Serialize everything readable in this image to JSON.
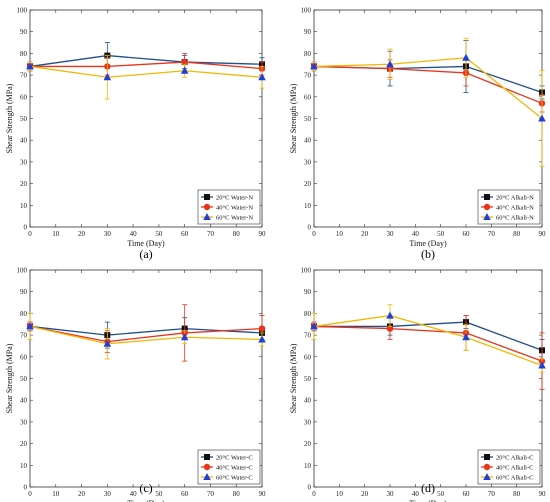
{
  "colors": {
    "20C": "#1f4e8c",
    "40C": "#e8341c",
    "60C": "#f2b705",
    "marker20": "#111111",
    "marker40": "#e8341c",
    "marker60": "#1f3fd6"
  },
  "chart_data": [
    {
      "type": "line",
      "caption": "(a)",
      "xlabel": "Time (Day)",
      "ylabel": "Shear Strength (MPa)",
      "xlim": [
        0,
        90
      ],
      "ylim": [
        0,
        100
      ],
      "xticks": [
        0,
        10,
        20,
        30,
        40,
        50,
        60,
        70,
        80,
        90
      ],
      "yticks": [
        0,
        10,
        20,
        30,
        40,
        50,
        60,
        70,
        80,
        90,
        100
      ],
      "legend_position": "bottom-right",
      "x": [
        0,
        30,
        60,
        90
      ],
      "series": [
        {
          "name": "20°C Water-N",
          "key": "20C",
          "marker": "square",
          "values": [
            74,
            79,
            76,
            75
          ],
          "errors": [
            2,
            6,
            3,
            3
          ]
        },
        {
          "name": "40°C Water-N",
          "key": "40C",
          "marker": "circle",
          "values": [
            74,
            74,
            76,
            73
          ],
          "errors": [
            2,
            4,
            4,
            3
          ]
        },
        {
          "name": "60°C Water-N",
          "key": "60C",
          "marker": "triangle",
          "values": [
            74,
            69,
            72,
            69
          ],
          "errors": [
            2,
            10,
            3,
            5
          ]
        }
      ]
    },
    {
      "type": "line",
      "caption": "(b)",
      "xlabel": "Time (Day)",
      "ylabel": "Shear Strength (MPa)",
      "xlim": [
        0,
        90
      ],
      "ylim": [
        0,
        100
      ],
      "xticks": [
        0,
        10,
        20,
        30,
        40,
        50,
        60,
        70,
        80,
        90
      ],
      "yticks": [
        0,
        10,
        20,
        30,
        40,
        50,
        60,
        70,
        80,
        90,
        100
      ],
      "legend_position": "bottom-right",
      "x": [
        0,
        30,
        60,
        90
      ],
      "series": [
        {
          "name": "20°C Alkali-N",
          "key": "20C",
          "marker": "square",
          "values": [
            74,
            73,
            74,
            62
          ],
          "errors": [
            2,
            8,
            12,
            3
          ]
        },
        {
          "name": "40°C Alkali-N",
          "key": "40C",
          "marker": "circle",
          "values": [
            74,
            73,
            71,
            57
          ],
          "errors": [
            2,
            4,
            6,
            4
          ]
        },
        {
          "name": "60°C Alkali-N",
          "key": "60C",
          "marker": "triangle",
          "values": [
            74,
            75,
            78,
            50
          ],
          "errors": [
            2,
            7,
            9,
            22
          ]
        }
      ]
    },
    {
      "type": "line",
      "caption": "(c)",
      "xlabel": "Time (Day)",
      "ylabel": "Shear Strength (MPa)",
      "xlim": [
        0,
        90
      ],
      "ylim": [
        0,
        100
      ],
      "xticks": [
        0,
        10,
        20,
        30,
        40,
        50,
        60,
        70,
        80,
        90
      ],
      "yticks": [
        0,
        10,
        20,
        30,
        40,
        50,
        60,
        70,
        80,
        90,
        100
      ],
      "legend_position": "bottom-right",
      "x": [
        0,
        30,
        60,
        90
      ],
      "series": [
        {
          "name": "20°C Water-C",
          "key": "20C",
          "marker": "square",
          "values": [
            74,
            70,
            73,
            71
          ],
          "errors": [
            2,
            6,
            5,
            3
          ]
        },
        {
          "name": "40°C Water-C",
          "key": "40C",
          "marker": "circle",
          "values": [
            74,
            67,
            71,
            73
          ],
          "errors": [
            2,
            5,
            13,
            6
          ]
        },
        {
          "name": "60°C Water-C",
          "key": "60C",
          "marker": "triangle",
          "values": [
            74,
            66,
            69,
            68
          ],
          "errors": [
            6,
            7,
            3,
            3
          ]
        }
      ]
    },
    {
      "type": "line",
      "caption": "(d)",
      "xlabel": "Time (Day)",
      "ylabel": "Shear Strength (MPa)",
      "xlim": [
        0,
        90
      ],
      "ylim": [
        0,
        100
      ],
      "xticks": [
        0,
        10,
        20,
        30,
        40,
        50,
        60,
        70,
        80,
        90
      ],
      "yticks": [
        0,
        10,
        20,
        30,
        40,
        50,
        60,
        70,
        80,
        90,
        100
      ],
      "legend_position": "bottom-right",
      "x": [
        0,
        30,
        60,
        90
      ],
      "series": [
        {
          "name": "20°C Alkali-C",
          "key": "20C",
          "marker": "square",
          "values": [
            74,
            74,
            76,
            63
          ],
          "errors": [
            2,
            4,
            3,
            5
          ]
        },
        {
          "name": "40°C Alkali-C",
          "key": "40C",
          "marker": "circle",
          "values": [
            74,
            73,
            71,
            58
          ],
          "errors": [
            2,
            5,
            8,
            13
          ]
        },
        {
          "name": "60°C Alkali-C",
          "key": "60C",
          "marker": "triangle",
          "values": [
            74,
            79,
            69,
            56
          ],
          "errors": [
            6,
            5,
            6,
            3
          ]
        }
      ]
    }
  ]
}
